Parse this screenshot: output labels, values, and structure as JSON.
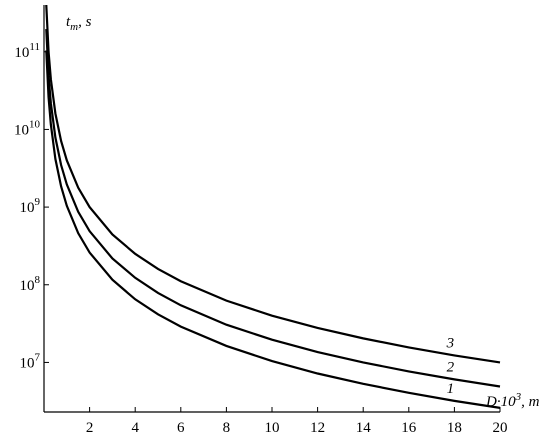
{
  "chart_data": {
    "type": "line",
    "ylabel": {
      "base": "t",
      "sub": "m",
      "rest": ", s"
    },
    "xlabel": {
      "base": "D·10",
      "sup": "3",
      "rest": ", m"
    },
    "x": [
      0.1,
      0.2,
      0.3,
      0.5,
      0.75,
      1,
      1.5,
      2,
      3,
      4,
      5,
      6,
      8,
      10,
      12,
      14,
      16,
      18,
      20
    ],
    "series": [
      {
        "name": "1",
        "color": "#000000",
        "values": [
          104000000000.0,
          26000000000.0,
          11600000000.0,
          4160000000.0,
          1850000000.0,
          1040000000.0,
          462000000.0,
          260000000.0,
          116000000.0,
          65000000.0,
          41600000.0,
          28900000.0,
          16300000.0,
          10400000.0,
          7200000.0,
          5300000.0,
          4060000.0,
          3200000.0,
          2600000.0
        ]
      },
      {
        "name": "2",
        "color": "#000000",
        "values": [
          196000000000.0,
          49000000000.0,
          21800000000.0,
          7840000000.0,
          3480000000.0,
          1960000000.0,
          871000000.0,
          490000000.0,
          218000000.0,
          123000000.0,
          78400000.0,
          54400000.0,
          30600000.0,
          19600000.0,
          13600000.0,
          10000000.0,
          7660000.0,
          6050000.0,
          4900000.0
        ]
      },
      {
        "name": "3",
        "color": "#000000",
        "values": [
          400000000000.0,
          100000000000.0,
          44400000000.0,
          16000000000.0,
          7110000000.0,
          4000000000.0,
          1780000000.0,
          1000000000.0,
          444000000.0,
          250000000.0,
          160000000.0,
          111000000.0,
          62500000.0,
          40000000.0,
          27800000.0,
          20400000.0,
          15600000.0,
          12300000.0,
          10000000.0
        ]
      }
    ],
    "xlim": [
      0,
      20
    ],
    "xticks": [
      2,
      4,
      6,
      8,
      10,
      12,
      14,
      16,
      18,
      20
    ],
    "ylim": [
      2300000.0,
      400000000000.0
    ],
    "ylog": true,
    "yticks": [
      {
        "value": 10000000.0,
        "label": "10^7"
      },
      {
        "value": 100000000.0,
        "label": "10^8"
      },
      {
        "value": 1000000000.0,
        "label": "10^9"
      },
      {
        "value": 10000000000.0,
        "label": "10^10"
      },
      {
        "value": 100000000000.0,
        "label": "10^11"
      }
    ]
  }
}
